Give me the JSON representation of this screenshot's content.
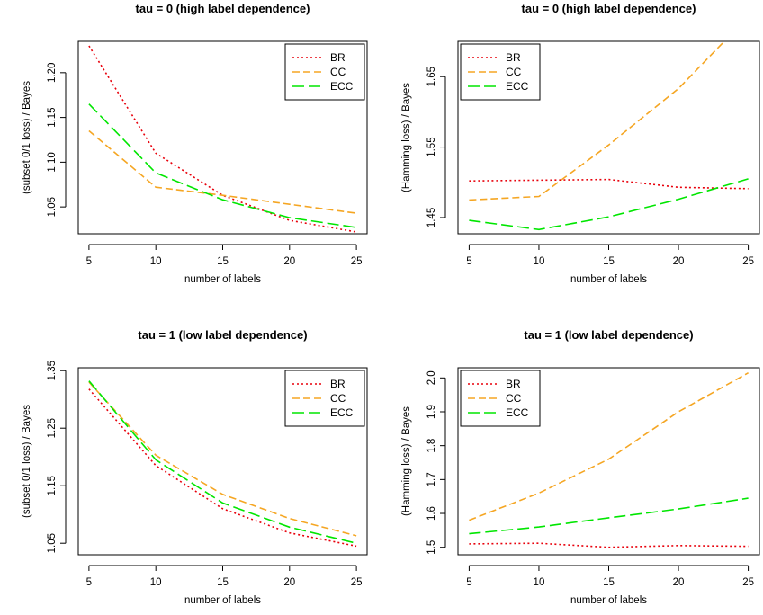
{
  "colors": {
    "BR": "#e8000b",
    "CC": "#f5a623",
    "ECC": "#00e600"
  },
  "chart_data": [
    {
      "type": "line",
      "title": "tau = 0 (high label dependence)",
      "xlabel": "number of labels",
      "ylabel": "(subset 0/1 loss) / Bayes",
      "x": [
        5,
        10,
        15,
        20,
        25
      ],
      "xticks": [
        5,
        10,
        15,
        20,
        25
      ],
      "xtick_labels": [
        "5",
        "10",
        "15",
        "20",
        "25"
      ],
      "yticks": [
        1.05,
        1.1,
        1.15,
        1.2
      ],
      "ytick_labels": [
        "1.05",
        "1.10",
        "1.15",
        "1.20"
      ],
      "ylim": [
        1.02,
        1.235
      ],
      "legend_position": "top-right",
      "series": [
        {
          "name": "BR",
          "values": [
            1.23,
            1.11,
            1.063,
            1.035,
            1.022
          ]
        },
        {
          "name": "CC",
          "values": [
            1.135,
            1.072,
            1.063,
            1.053,
            1.043
          ]
        },
        {
          "name": "ECC",
          "values": [
            1.165,
            1.088,
            1.058,
            1.038,
            1.027
          ]
        }
      ]
    },
    {
      "type": "line",
      "title": "tau = 0 (high label dependence)",
      "xlabel": "number of labels",
      "ylabel": "(Hamming loss) / Bayes",
      "x": [
        5,
        10,
        15,
        20,
        25
      ],
      "xticks": [
        5,
        10,
        15,
        20,
        25
      ],
      "xtick_labels": [
        "5",
        "10",
        "15",
        "20",
        "25"
      ],
      "yticks": [
        1.45,
        1.55,
        1.65
      ],
      "ytick_labels": [
        "1.45",
        "1.55",
        "1.65"
      ],
      "ylim": [
        1.427,
        1.7
      ],
      "legend_position": "top-left",
      "series": [
        {
          "name": "BR",
          "values": [
            1.502,
            1.503,
            1.504,
            1.493,
            1.491
          ]
        },
        {
          "name": "CC",
          "values": [
            1.475,
            1.48,
            1.553,
            1.633,
            1.735
          ]
        },
        {
          "name": "ECC",
          "values": [
            1.446,
            1.433,
            1.451,
            1.476,
            1.505
          ]
        }
      ]
    },
    {
      "type": "line",
      "title": "tau = 1 (low label dependence)",
      "xlabel": "number of labels",
      "ylabel": "(subset 0/1 loss) / Bayes",
      "x": [
        5,
        10,
        15,
        20,
        25
      ],
      "xticks": [
        5,
        10,
        15,
        20,
        25
      ],
      "xtick_labels": [
        "5",
        "10",
        "15",
        "20",
        "25"
      ],
      "yticks": [
        1.05,
        1.15,
        1.25,
        1.35
      ],
      "ytick_labels": [
        "1.05",
        "1.15",
        "1.25",
        "1.35"
      ],
      "ylim": [
        1.03,
        1.355
      ],
      "legend_position": "top-right",
      "series": [
        {
          "name": "BR",
          "values": [
            1.318,
            1.185,
            1.11,
            1.068,
            1.045
          ]
        },
        {
          "name": "CC",
          "values": [
            1.33,
            1.203,
            1.135,
            1.093,
            1.063
          ]
        },
        {
          "name": "ECC",
          "values": [
            1.332,
            1.195,
            1.12,
            1.078,
            1.05
          ]
        }
      ]
    },
    {
      "type": "line",
      "title": "tau = 1 (low label dependence)",
      "xlabel": "number of labels",
      "ylabel": "(Hamming loss) / Bayes",
      "x": [
        5,
        10,
        15,
        20,
        25
      ],
      "xticks": [
        5,
        10,
        15,
        20,
        25
      ],
      "xtick_labels": [
        "5",
        "10",
        "15",
        "20",
        "25"
      ],
      "yticks": [
        1.5,
        1.6,
        1.7,
        1.8,
        1.9,
        2.0
      ],
      "ytick_labels": [
        "1.5",
        "1.6",
        "1.7",
        "1.8",
        "1.9",
        "2.0"
      ],
      "ylim": [
        1.478,
        2.03
      ],
      "legend_position": "top-left",
      "series": [
        {
          "name": "BR",
          "values": [
            1.51,
            1.512,
            1.5,
            1.505,
            1.503
          ]
        },
        {
          "name": "CC",
          "values": [
            1.58,
            1.66,
            1.76,
            1.9,
            2.015
          ]
        },
        {
          "name": "ECC",
          "values": [
            1.54,
            1.56,
            1.587,
            1.613,
            1.645
          ]
        }
      ]
    }
  ]
}
